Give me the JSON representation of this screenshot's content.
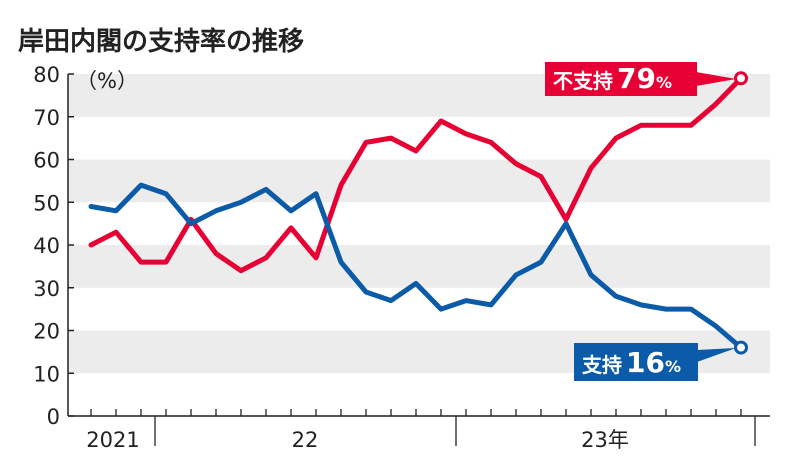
{
  "chart_data": {
    "type": "line",
    "title": "岸田内閣の支持率の推移",
    "ylabel": "（%）",
    "ylim": [
      0,
      80
    ],
    "yticks": [
      0,
      10,
      20,
      30,
      40,
      50,
      60,
      70,
      80
    ],
    "grid": "alternating horizontal bands",
    "x_group_labels": [
      "2021",
      "22",
      "23年"
    ],
    "x_points": 27,
    "series": [
      {
        "key": "disapprove",
        "color": "#e60033",
        "values": [
          40,
          43,
          36,
          36,
          46,
          38,
          34,
          37,
          44,
          37,
          54,
          64,
          65,
          62,
          69,
          66,
          64,
          59,
          56,
          46,
          58,
          65,
          68,
          68,
          68,
          73,
          79
        ],
        "end_label": {
          "name": "不支持",
          "value": "79",
          "unit": "%"
        }
      },
      {
        "key": "approve",
        "color": "#0b5ba8",
        "values": [
          49,
          48,
          54,
          52,
          45,
          48,
          50,
          53,
          48,
          52,
          36,
          29,
          27,
          31,
          25,
          27,
          26,
          33,
          36,
          45,
          33,
          28,
          26,
          25,
          25,
          21,
          16
        ],
        "end_label": {
          "name": "支持",
          "value": "16",
          "unit": "%"
        }
      }
    ]
  }
}
